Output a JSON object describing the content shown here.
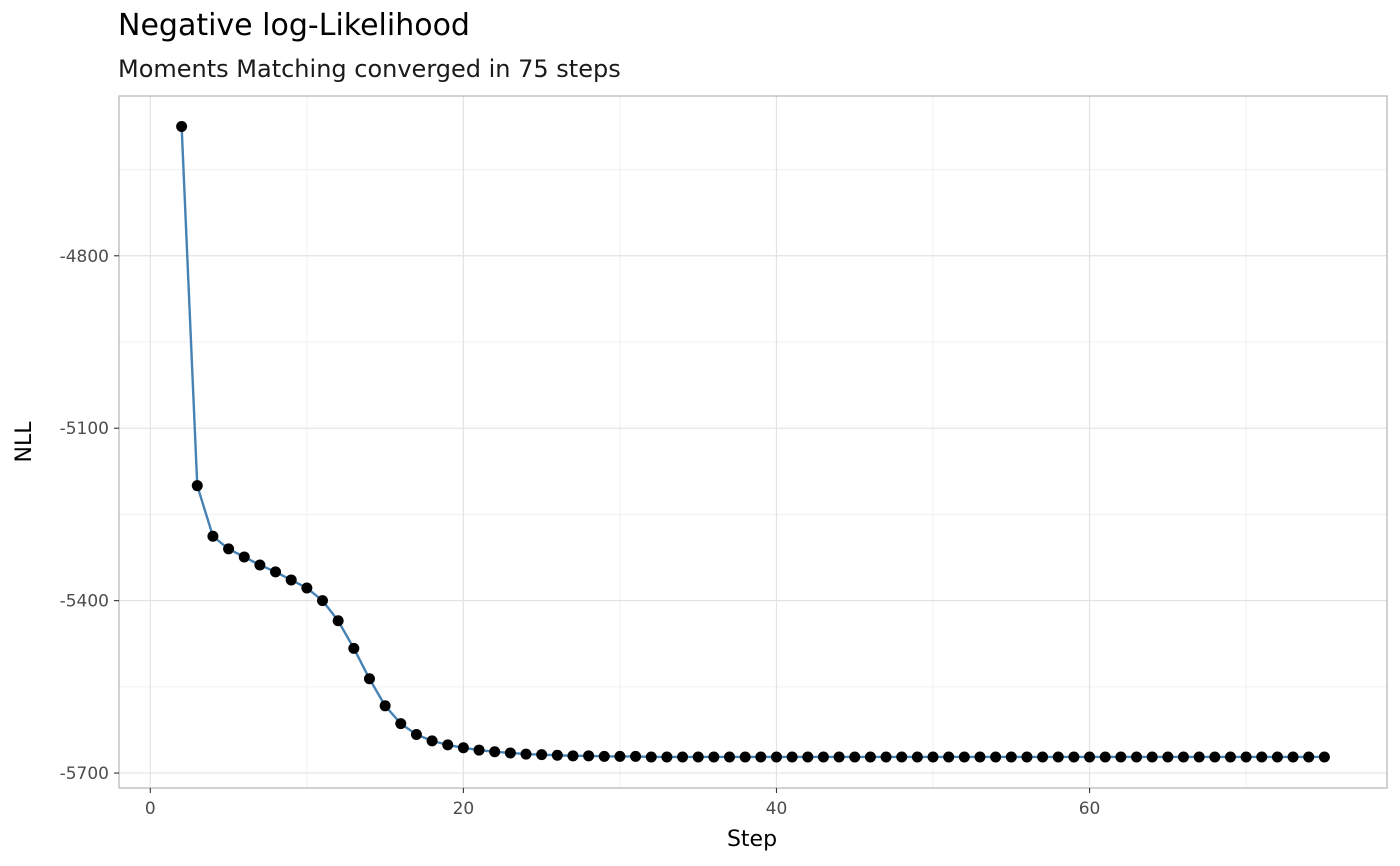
{
  "chart_data": {
    "type": "line",
    "title": "Negative log-Likelihood",
    "subtitle": "Moments Matching converged in 75 steps",
    "xlabel": "Step",
    "ylabel": "NLL",
    "xlim": [
      -2,
      79
    ],
    "ylim": [
      -5726,
      -4522
    ],
    "x_ticks": [
      0,
      20,
      40,
      60
    ],
    "x_tick_labels": [
      "0",
      "20",
      "40",
      "60"
    ],
    "y_ticks": [
      -5700,
      -5400,
      -5100,
      -4800
    ],
    "y_tick_labels": [
      "-5700",
      "-5400",
      "-5100",
      "-4800"
    ],
    "grid": true,
    "line_color": "#4682b4",
    "point_color": "#000000",
    "x": [
      2,
      3,
      4,
      5,
      6,
      7,
      8,
      9,
      10,
      11,
      12,
      13,
      14,
      15,
      16,
      17,
      18,
      19,
      20,
      21,
      22,
      23,
      24,
      25,
      26,
      27,
      28,
      29,
      30,
      31,
      32,
      33,
      34,
      35,
      36,
      37,
      38,
      39,
      40,
      41,
      42,
      43,
      44,
      45,
      46,
      47,
      48,
      49,
      50,
      51,
      52,
      53,
      54,
      55,
      56,
      57,
      58,
      59,
      60,
      61,
      62,
      63,
      64,
      65,
      66,
      67,
      68,
      69,
      70,
      71,
      72,
      73,
      74,
      75
    ],
    "y": [
      -4575,
      -5200,
      -5288,
      -5310,
      -5324,
      -5338,
      -5350,
      -5364,
      -5378,
      -5400,
      -5435,
      -5483,
      -5536,
      -5583,
      -5614,
      -5633,
      -5644,
      -5651,
      -5656,
      -5660,
      -5663,
      -5665,
      -5667,
      -5668,
      -5669,
      -5670,
      -5670,
      -5671,
      -5671,
      -5671,
      -5672,
      -5672,
      -5672,
      -5672,
      -5672,
      -5672,
      -5672,
      -5672,
      -5672,
      -5672,
      -5672,
      -5672,
      -5672,
      -5672,
      -5672,
      -5672,
      -5672,
      -5672,
      -5672,
      -5672,
      -5672,
      -5672,
      -5672,
      -5672,
      -5672,
      -5672,
      -5672,
      -5672,
      -5672,
      -5672,
      -5672,
      -5672,
      -5672,
      -5672,
      -5672,
      -5672,
      -5672,
      -5672,
      -5672,
      -5672,
      -5672,
      -5672,
      -5672,
      -5672
    ]
  }
}
